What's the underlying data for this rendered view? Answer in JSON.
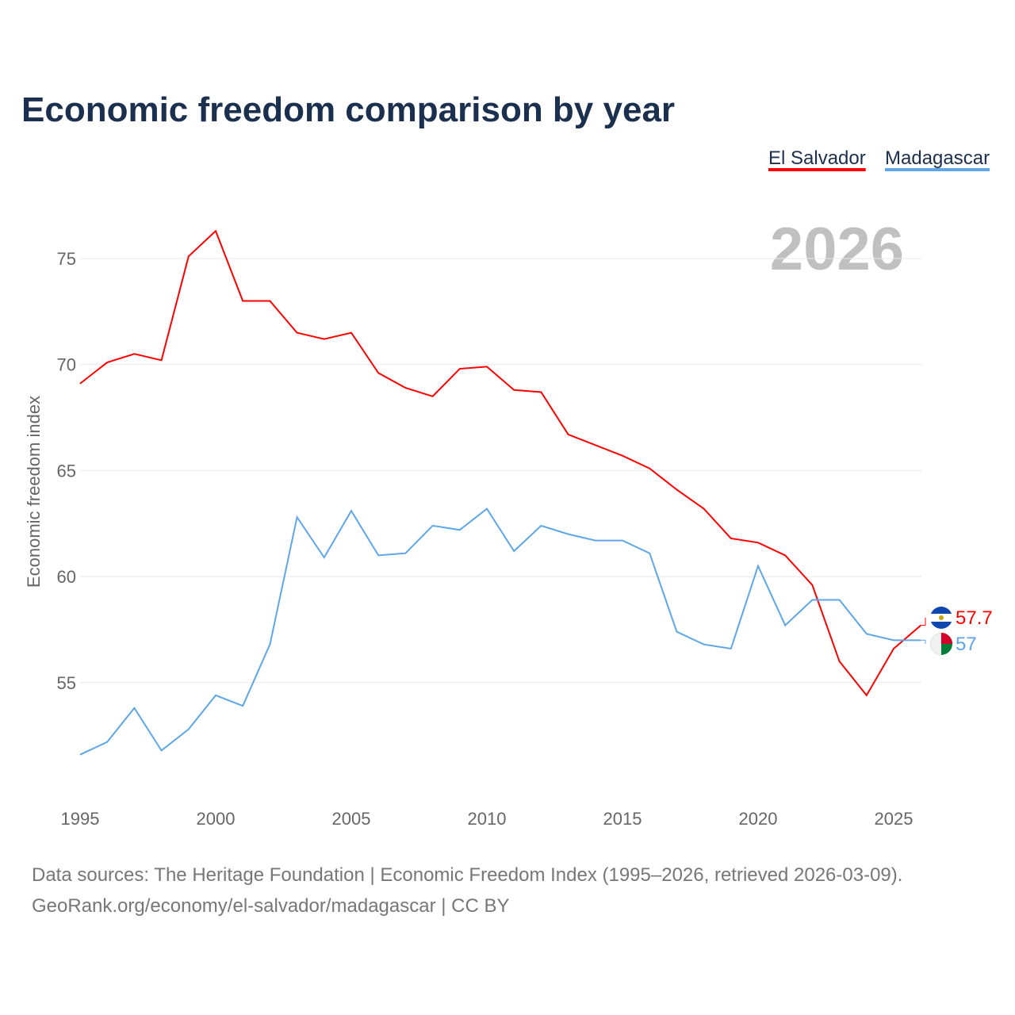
{
  "chart_data": {
    "type": "line",
    "title": "Economic freedom comparison by year",
    "xlabel": "",
    "ylabel": "Economic freedom index",
    "xlim": [
      1995,
      2026
    ],
    "ylim": [
      49,
      77
    ],
    "x_ticks": [
      1995,
      2000,
      2005,
      2010,
      2015,
      2020,
      2025
    ],
    "y_ticks": [
      55,
      60,
      65,
      70,
      75
    ],
    "grid": true,
    "legend_placement": "top-right",
    "year_label": "2026",
    "x": [
      1995,
      1996,
      1997,
      1998,
      1999,
      2000,
      2001,
      2002,
      2003,
      2004,
      2005,
      2006,
      2007,
      2008,
      2009,
      2010,
      2011,
      2012,
      2013,
      2014,
      2015,
      2016,
      2017,
      2018,
      2019,
      2020,
      2021,
      2022,
      2023,
      2024,
      2025,
      2026
    ],
    "series": [
      {
        "name": "El Salvador",
        "color": "#ff0000",
        "end_label": "57.7",
        "values": [
          69.1,
          70.1,
          70.5,
          70.2,
          75.1,
          76.3,
          73.0,
          73.0,
          71.5,
          71.2,
          71.5,
          69.6,
          68.9,
          68.5,
          69.8,
          69.9,
          68.8,
          68.7,
          66.7,
          66.2,
          65.7,
          65.1,
          64.1,
          63.2,
          61.8,
          61.6,
          61.0,
          59.6,
          56.0,
          54.4,
          56.6,
          57.7
        ]
      },
      {
        "name": "Madagascar",
        "color": "#5ea6e8",
        "end_label": "57",
        "values": [
          51.6,
          52.2,
          53.8,
          51.8,
          52.8,
          54.4,
          53.9,
          56.8,
          62.8,
          60.9,
          63.1,
          61.0,
          61.1,
          62.4,
          62.2,
          63.2,
          61.2,
          62.4,
          62.0,
          61.7,
          61.7,
          61.1,
          57.4,
          56.8,
          56.6,
          60.5,
          57.7,
          58.9,
          58.9,
          57.3,
          57.0,
          57.0
        ]
      }
    ]
  },
  "footer": {
    "line1": "Data sources: The Heritage Foundation | Economic Freedom Index (1995–2026, retrieved 2026-03-09).",
    "line2": "GeoRank.org/economy/el-salvador/madagascar | CC BY"
  }
}
